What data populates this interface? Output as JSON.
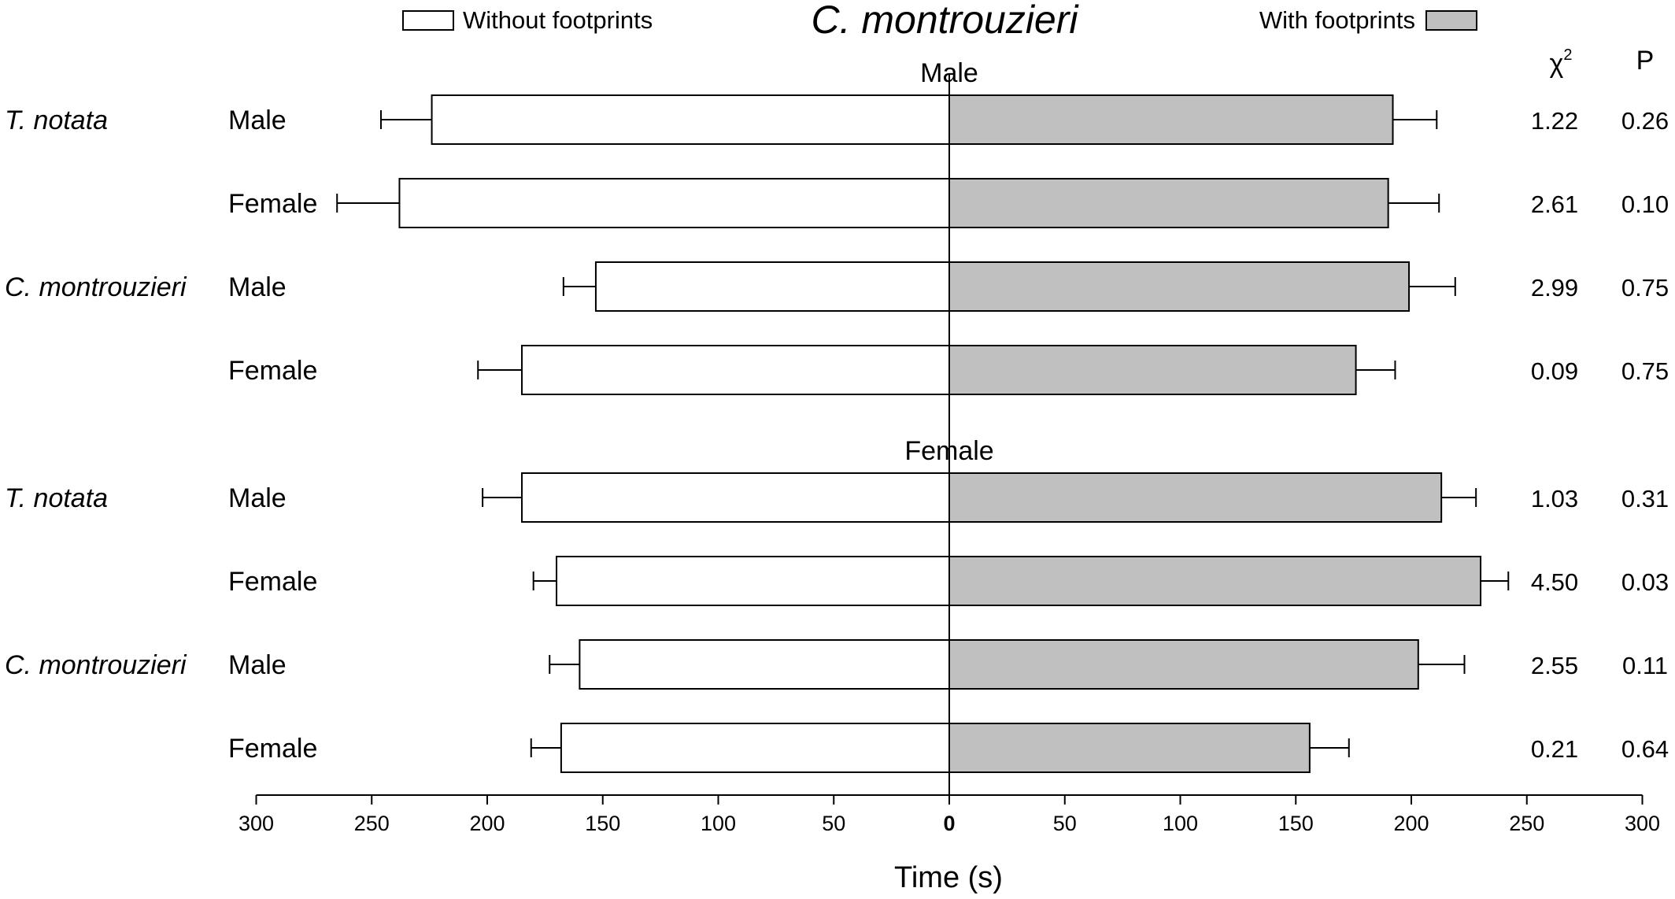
{
  "chart_data": {
    "type": "bar",
    "title": "C. montrouzieri",
    "xlabel": "Time (s)",
    "xlim": [
      -300,
      300
    ],
    "x_tick_values": [
      -300,
      -250,
      -200,
      -150,
      -100,
      -50,
      0,
      50,
      100,
      150,
      200,
      250,
      300
    ],
    "x_tick_labels": [
      "300",
      "250",
      "200",
      "150",
      "100",
      "50",
      "0",
      "50",
      "100",
      "150",
      "200",
      "250",
      "300"
    ],
    "legend": {
      "placement": "top",
      "without_label": "Without footprints",
      "with_label": "With footprints"
    },
    "series": [
      {
        "name": "Without footprints",
        "color": "#ffffff",
        "direction": "left"
      },
      {
        "name": "With footprints",
        "color": "#c0c0c0",
        "direction": "right"
      }
    ],
    "stat_headers": {
      "chi2": "χ",
      "chi2_sup": "2",
      "p": "P"
    },
    "groups": [
      {
        "title": "Male",
        "rows": [
          {
            "species": "T. notata",
            "sex": "Male",
            "without": 224,
            "without_err": 22,
            "with": 192,
            "with_err": 19,
            "chi2": "1.22",
            "p": "0.26"
          },
          {
            "species": "",
            "sex": "Female",
            "without": 238,
            "without_err": 27,
            "with": 190,
            "with_err": 22,
            "chi2": "2.61",
            "p": "0.10"
          },
          {
            "species": "C. montrouzieri",
            "sex": "Male",
            "without": 153,
            "without_err": 14,
            "with": 199,
            "with_err": 20,
            "chi2": "2.99",
            "p": "0.75"
          },
          {
            "species": "",
            "sex": "Female",
            "without": 185,
            "without_err": 19,
            "with": 176,
            "with_err": 17,
            "chi2": "0.09",
            "p": "0.75"
          }
        ]
      },
      {
        "title": "Female",
        "rows": [
          {
            "species": "T. notata",
            "sex": "Male",
            "without": 185,
            "without_err": 17,
            "with": 213,
            "with_err": 15,
            "chi2": "1.03",
            "p": "0.31"
          },
          {
            "species": "",
            "sex": "Female",
            "without": 170,
            "without_err": 10,
            "with": 230,
            "with_err": 12,
            "chi2": "4.50",
            "p": "0.03"
          },
          {
            "species": "C. montrouzieri",
            "sex": "Male",
            "without": 160,
            "without_err": 13,
            "with": 203,
            "with_err": 20,
            "chi2": "2.55",
            "p": "0.11"
          },
          {
            "species": "",
            "sex": "Female",
            "without": 168,
            "without_err": 13,
            "with": 156,
            "with_err": 17,
            "chi2": "0.21",
            "p": "0.64"
          }
        ]
      }
    ]
  }
}
